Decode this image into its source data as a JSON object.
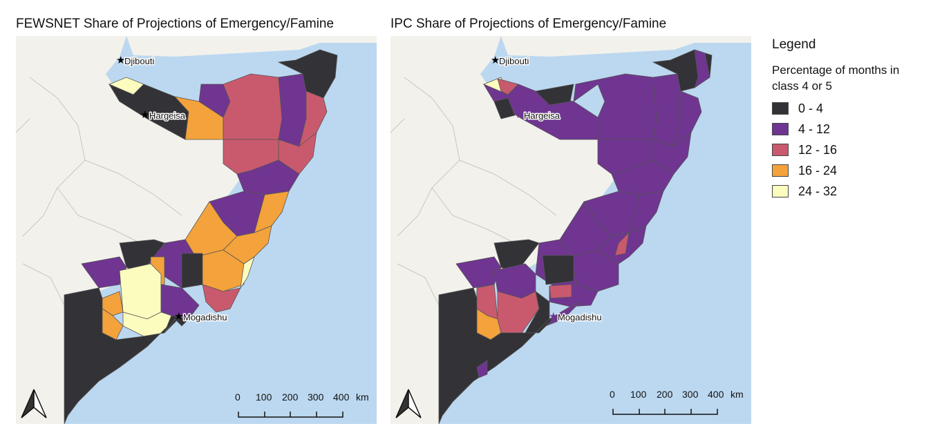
{
  "maps": [
    {
      "title": "FEWSNET Share of Projections of Emergency/Famine",
      "cities": [
        "Djibouti",
        "Hargeisa",
        "Mogadishu"
      ],
      "scale_ticks": [
        "0",
        "100",
        "200",
        "300",
        "400"
      ],
      "scale_unit": "km"
    },
    {
      "title": "IPC Share of Projections of Emergency/Famine",
      "cities": [
        "Djibouti",
        "Hargeisa",
        "Mogadishu"
      ],
      "scale_ticks": [
        "0",
        "100",
        "200",
        "300",
        "400"
      ],
      "scale_unit": "km"
    }
  ],
  "legend": {
    "title": "Legend",
    "subtitle": "Percentage of months in class 4 or 5",
    "classes": [
      {
        "label": "0 - 4",
        "color": "#333236"
      },
      {
        "label": "4 - 12",
        "color": "#6f3591"
      },
      {
        "label": "12 - 16",
        "color": "#c95a6e"
      },
      {
        "label": "16 - 24",
        "color": "#f4a23b"
      },
      {
        "label": "24 - 32",
        "color": "#fcfcbf"
      }
    ]
  },
  "colors": {
    "ocean": "#bcd8f0",
    "land": "#f3f1ec",
    "border": "#c9c6c0"
  }
}
